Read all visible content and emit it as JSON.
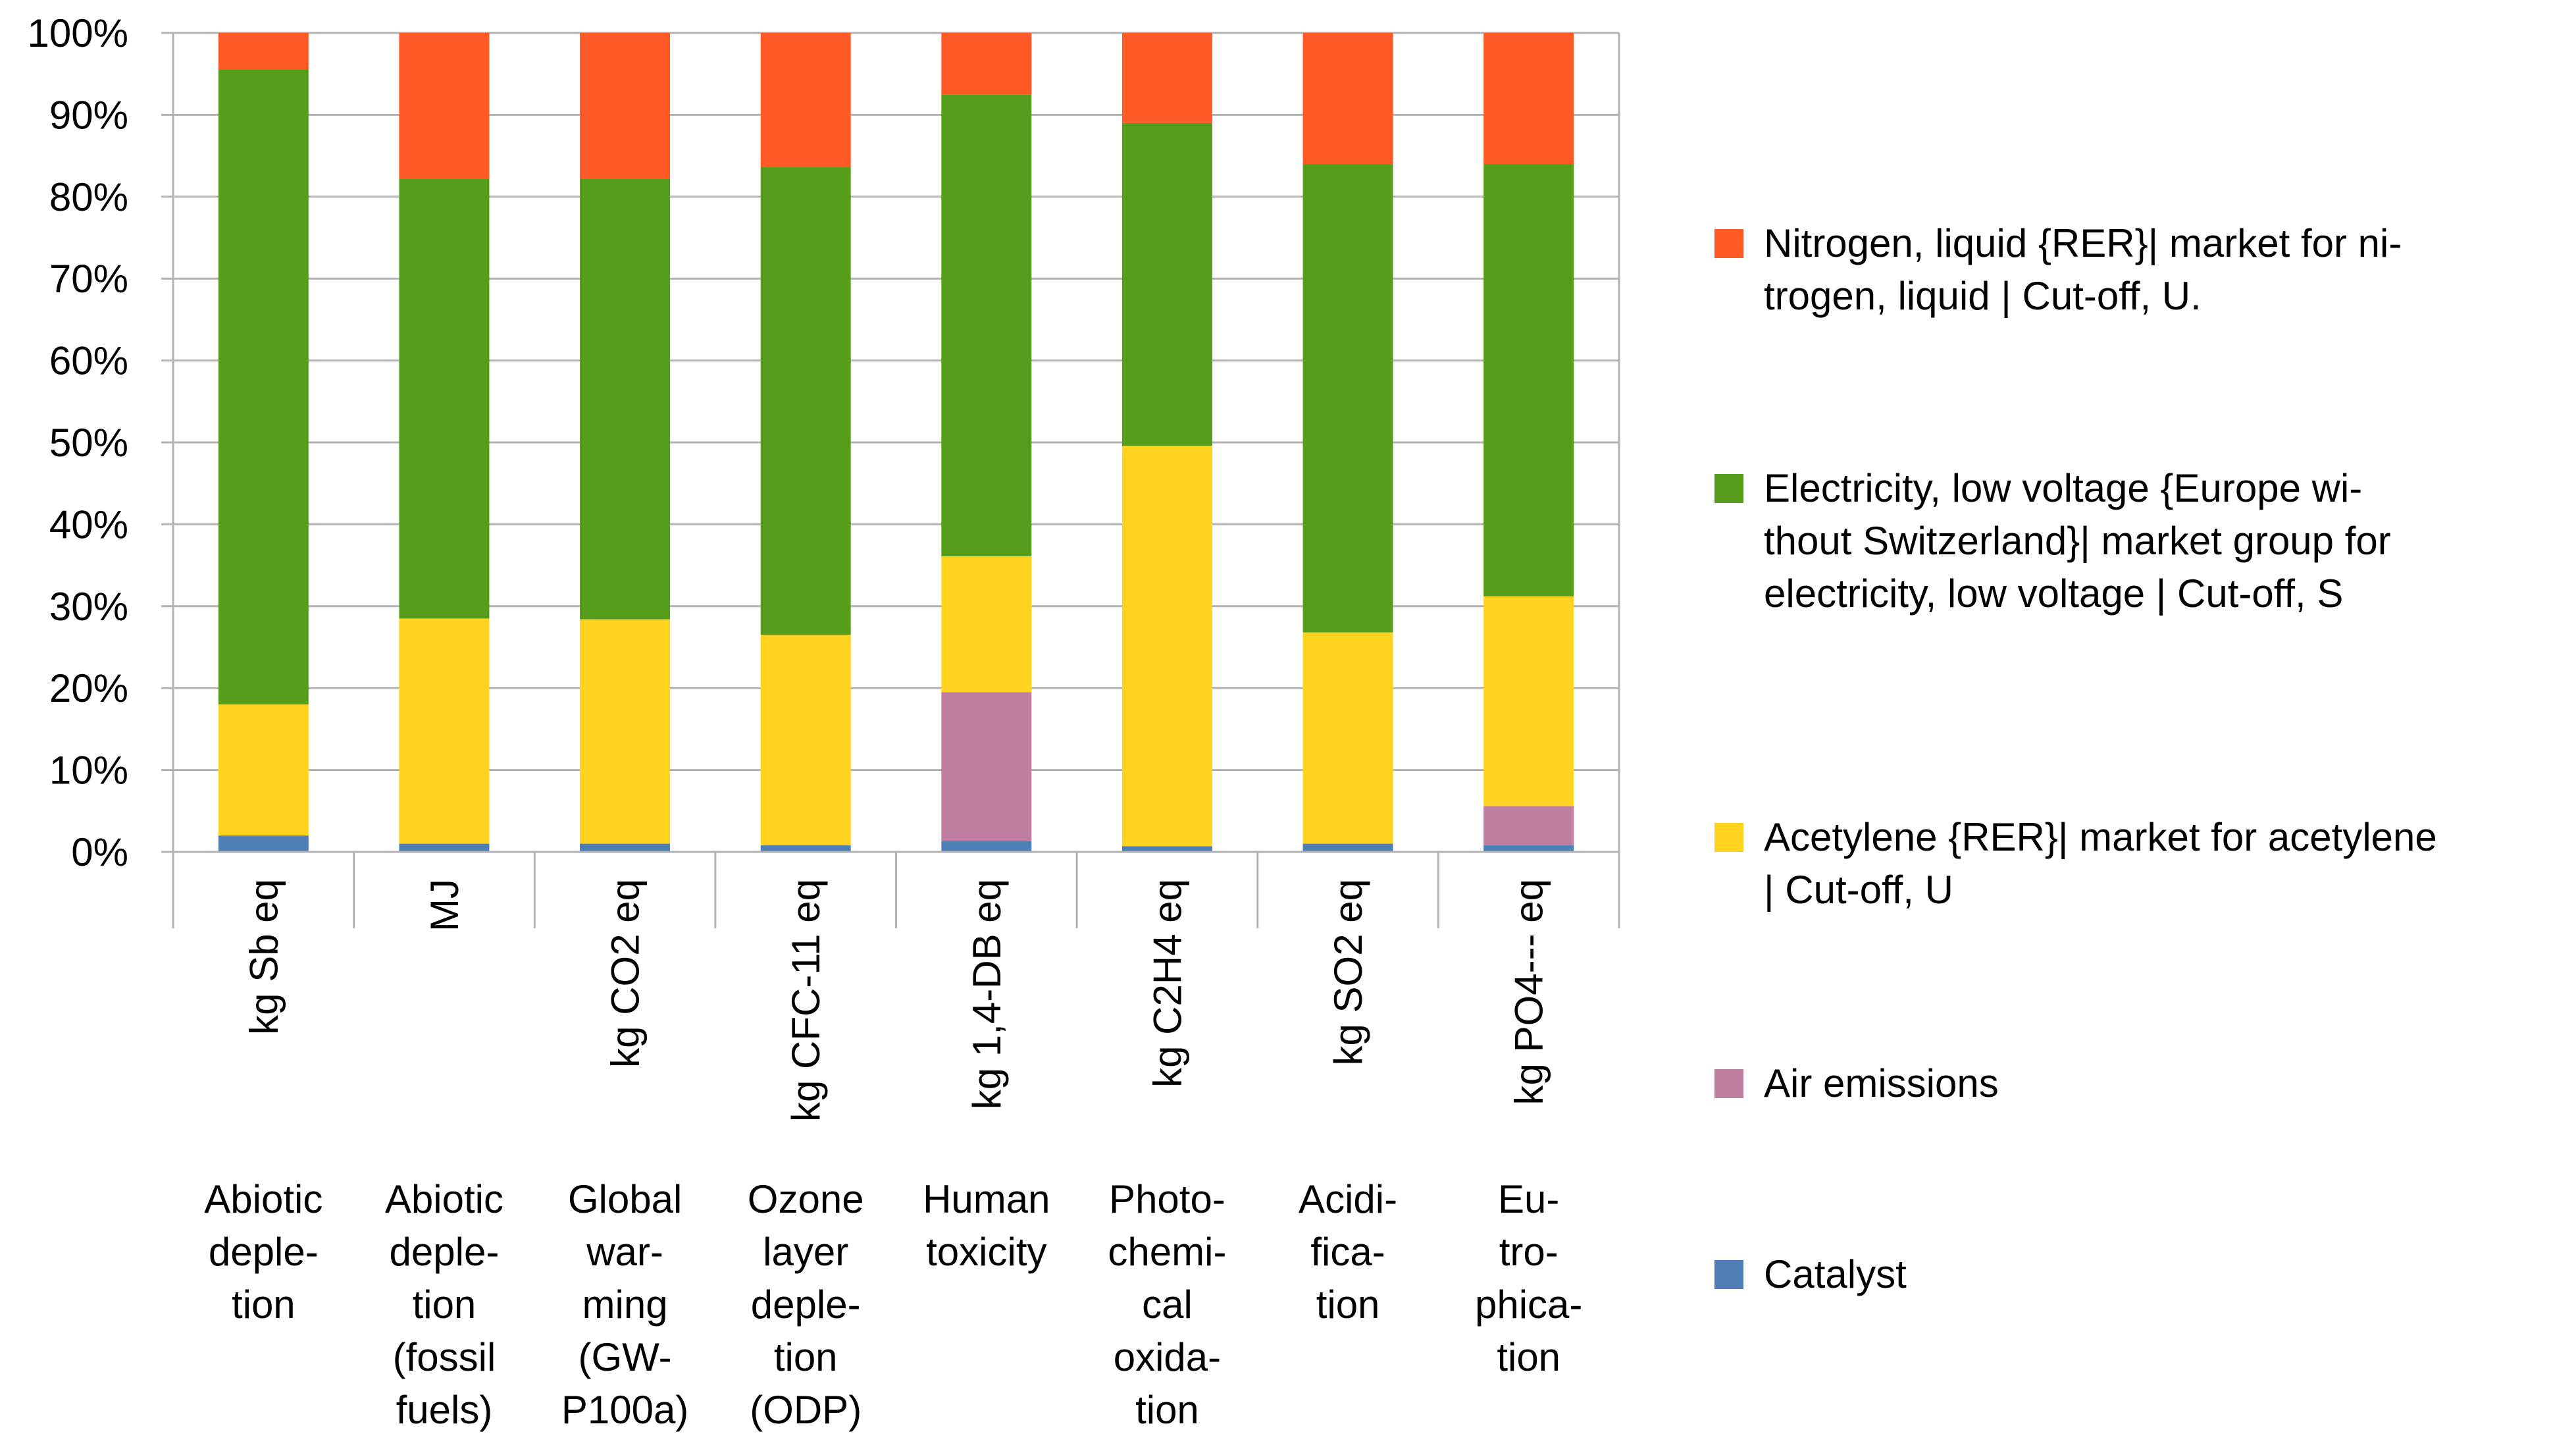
{
  "chart_data": {
    "type": "bar",
    "stacked": true,
    "percent": true,
    "ylim": [
      0,
      100
    ],
    "y_ticks": [
      "0%",
      "10%",
      "20%",
      "30%",
      "40%",
      "50%",
      "60%",
      "70%",
      "80%",
      "90%",
      "100%"
    ],
    "grid": true,
    "legend_position": "right",
    "units": [
      "kg Sb eq",
      "MJ",
      "kg CO2 eq",
      "kg CFC-11 eq",
      "kg 1,4-DB eq",
      "kg C2H4 eq",
      "kg SO2 eq",
      "kg PO4--- eq"
    ],
    "categories": [
      [
        "Abiotic",
        "deple-",
        "tion"
      ],
      [
        "Abiotic",
        "deple-",
        "tion",
        "(fossil",
        "fuels)"
      ],
      [
        "Global",
        "war-",
        "ming",
        "(GW-",
        "P100a)"
      ],
      [
        "Ozone",
        "layer",
        "deple-",
        "tion",
        "(ODP)"
      ],
      [
        "Human",
        "toxicity"
      ],
      [
        "Photo-",
        "chemi-",
        "cal",
        "oxida-",
        "tion"
      ],
      [
        "Acidi-",
        "fica-",
        "tion"
      ],
      [
        "Eu-",
        "tro-",
        "phica-",
        "tion"
      ]
    ],
    "series": [
      {
        "name": "Catalyst",
        "color": "#4e7fb6",
        "values": [
          2,
          1,
          1,
          0.8,
          1.3,
          0.7,
          1,
          0.8
        ]
      },
      {
        "name": "Air emissions",
        "color": "#c07ea0",
        "values": [
          0,
          0,
          0,
          0,
          18.2,
          0,
          0,
          4.8
        ]
      },
      {
        "name": "Acetylene {RER}| market for acetylene | Cut-off, U",
        "color": "#ffd320",
        "values": [
          16,
          27.5,
          27.4,
          25.7,
          16.6,
          48.9,
          25.8,
          25.6
        ]
      },
      {
        "name": "Electricity, low voltage {Europe without Switzerland}| market group for electricity, low voltage | Cut-off, S",
        "color": "#579d1c",
        "values": [
          77.5,
          53.7,
          53.8,
          57.1,
          56.4,
          39.4,
          57.2,
          52.8
        ]
      },
      {
        "name": "Nitrogen, liquid {RER}| market for nitrogen, liquid | Cut-off, U.",
        "color": "#ff5a26",
        "values": [
          4.5,
          17.8,
          17.8,
          16.4,
          7.5,
          11,
          16,
          16
        ]
      }
    ]
  },
  "legend": [
    {
      "name": "nitrogen",
      "color": "#ff5a26",
      "lines": [
        "Nitrogen, liquid {RER}| market for ni-",
        "trogen, liquid | Cut-off, U."
      ]
    },
    {
      "name": "electricity",
      "color": "#579d1c",
      "lines": [
        "Electricity, low voltage {Europe wi-",
        "thout Switzerland}| market group for",
        "electricity, low voltage | Cut-off, S"
      ]
    },
    {
      "name": "acetylene",
      "color": "#ffd320",
      "lines": [
        "Acetylene {RER}| market for acetylene",
        "| Cut-off, U"
      ]
    },
    {
      "name": "air-emissions",
      "color": "#c07ea0",
      "lines": [
        "Air emissions"
      ]
    },
    {
      "name": "catalyst",
      "color": "#4e7fb6",
      "lines": [
        "Catalyst"
      ]
    }
  ]
}
